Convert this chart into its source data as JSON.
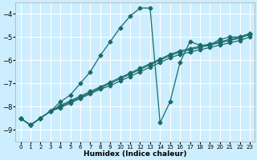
{
  "xlabel": "Humidex (Indice chaleur)",
  "bg_color": "#cceeff",
  "grid_color": "#ffffff",
  "line_color": "#1a6b6b",
  "xlim": [
    -0.5,
    23.5
  ],
  "ylim": [
    -9.5,
    -3.5
  ],
  "yticks": [
    -9,
    -8,
    -7,
    -6,
    -5,
    -4
  ],
  "xticks": [
    0,
    1,
    2,
    3,
    4,
    5,
    6,
    7,
    8,
    9,
    10,
    11,
    12,
    13,
    14,
    15,
    16,
    17,
    18,
    19,
    20,
    21,
    22,
    23
  ],
  "lines": [
    {
      "x": [
        0,
        1,
        2,
        3,
        4,
        5,
        6,
        7,
        8,
        9,
        10,
        11,
        12,
        13,
        14,
        15,
        16,
        17,
        18,
        19,
        20,
        21,
        22,
        23
      ],
      "y": [
        -8.5,
        -8.8,
        -8.5,
        -8.2,
        -7.8,
        -7.5,
        -7.0,
        -6.5,
        -5.8,
        -5.2,
        -4.6,
        -4.1,
        -3.75,
        -3.75,
        -8.7,
        -7.8,
        -6.1,
        -5.2,
        -5.35,
        -5.35,
        -5.1,
        -5.0,
        -5.0,
        -4.85
      ]
    },
    {
      "x": [
        0,
        1,
        2,
        3,
        4,
        5,
        6,
        7,
        8,
        9,
        10,
        11,
        12,
        13,
        14,
        15,
        16,
        17,
        18,
        19,
        20,
        21,
        22,
        23
      ],
      "y": [
        -8.5,
        -8.8,
        -8.5,
        -8.2,
        -8.05,
        -7.85,
        -7.65,
        -7.45,
        -7.25,
        -7.1,
        -6.9,
        -6.7,
        -6.5,
        -6.3,
        -6.1,
        -5.9,
        -5.75,
        -5.65,
        -5.55,
        -5.45,
        -5.35,
        -5.25,
        -5.15,
        -5.0
      ]
    },
    {
      "x": [
        0,
        1,
        2,
        3,
        4,
        5,
        6,
        7,
        8,
        9,
        10,
        11,
        12,
        13,
        14,
        15,
        16,
        17,
        18,
        19,
        20,
        21,
        22,
        23
      ],
      "y": [
        -8.5,
        -8.8,
        -8.5,
        -8.2,
        -8.0,
        -7.8,
        -7.6,
        -7.4,
        -7.2,
        -7.0,
        -6.8,
        -6.6,
        -6.4,
        -6.2,
        -6.0,
        -5.8,
        -5.65,
        -5.55,
        -5.45,
        -5.35,
        -5.25,
        -5.15,
        -5.05,
        -4.9
      ]
    },
    {
      "x": [
        0,
        1,
        2,
        3,
        4,
        5,
        6,
        7,
        8,
        9,
        10,
        11,
        12,
        13,
        14,
        15,
        16,
        17,
        18,
        19,
        20,
        21,
        22,
        23
      ],
      "y": [
        -8.5,
        -8.8,
        -8.5,
        -8.2,
        -7.95,
        -7.75,
        -7.55,
        -7.35,
        -7.15,
        -6.95,
        -6.75,
        -6.55,
        -6.35,
        -6.15,
        -5.95,
        -5.75,
        -5.6,
        -5.5,
        -5.4,
        -5.3,
        -5.2,
        -5.1,
        -5.0,
        -4.85
      ]
    }
  ],
  "marker": "D",
  "markersize": 2.5,
  "linewidth": 0.9
}
